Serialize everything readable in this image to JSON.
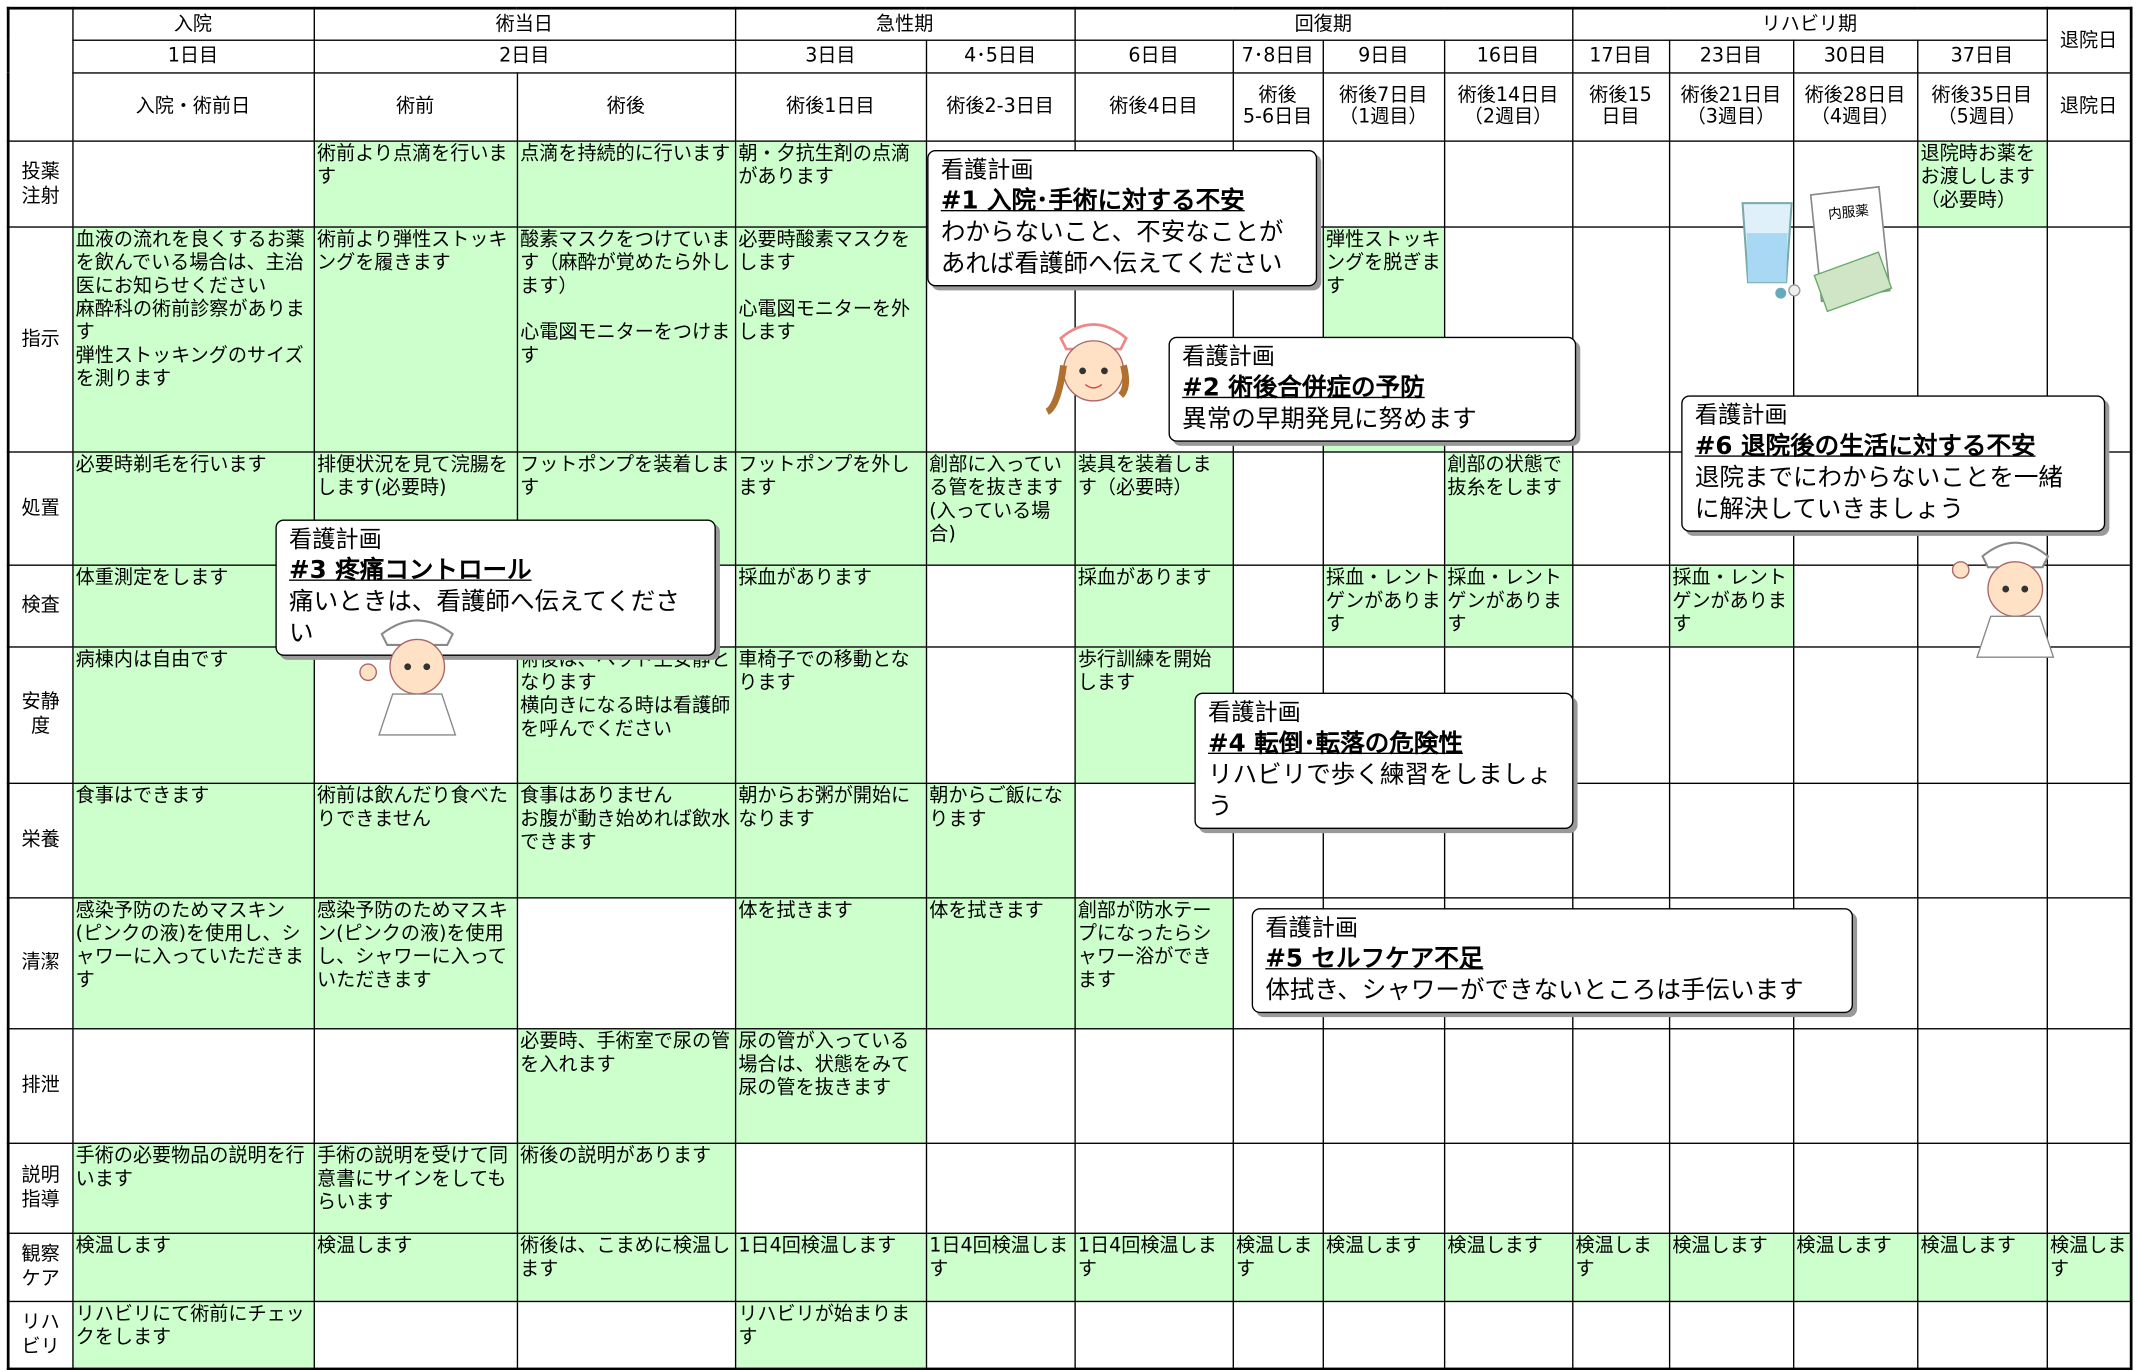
{
  "table": {
    "fill_color": "#ccffcc",
    "phases": [
      "入院",
      "術当日",
      "急性期",
      "回復期",
      "リハビリ期",
      "退院日"
    ],
    "days": [
      "1日目",
      "2日目",
      "3日目",
      "4･5日目",
      "6日目",
      "7･8日目",
      "9日目",
      "16日目",
      "17日目",
      "23日目",
      "30日目",
      "37日目"
    ],
    "columns": [
      "入院・術前日",
      "術前",
      "術後",
      "術後1日目",
      "術後2-3日目",
      "術後4日目",
      "術後\n5-6日目",
      "術後7日目\n（1週目）",
      "術後14日目\n（2週目）",
      "術後15\n日目",
      "術後21日目\n（3週目）",
      "術後28日目\n（4週目）",
      "術後35日目\n（5週目）",
      "退院日"
    ],
    "rows": [
      {
        "label": "投薬\n注射",
        "cells": [
          "",
          "術前より点滴を行います",
          "点滴を持続的に行います",
          "朝・夕抗生剤の点滴があります",
          "",
          "",
          "",
          "",
          "",
          "",
          "",
          "",
          "退院時お薬をお渡しします（必要時）",
          ""
        ]
      },
      {
        "label": "指示",
        "cells": [
          "血液の流れを良くするお薬を飲んでいる場合は、主治医にお知らせください\n麻酔科の術前診察があります\n弾性ストッキングのサイズを測ります",
          "術前より弾性ストッキングを履きます",
          "酸素マスクをつけています（麻酔が覚めたら外します）\n\n心電図モニターをつけます",
          "必要時酸素マスクをします\n\n心電図モニターを外します",
          "",
          "",
          "",
          "弾性ストッキングを脱ぎます",
          "",
          "",
          "",
          "",
          "",
          ""
        ]
      },
      {
        "label": "処置",
        "cells": [
          "必要時剃毛を行います",
          "排便状況を見て浣腸をします(必要時)",
          "フットポンプを装着します",
          "フットポンプを外します",
          "創部に入っている管を抜きます(入っている場合)",
          "装具を装着します（必要時）",
          "",
          "",
          "創部の状態で抜糸をします",
          "",
          "",
          "",
          "",
          ""
        ]
      },
      {
        "label": "検査",
        "cells": [
          "体重測定をします",
          "",
          "",
          "採血があります",
          "",
          "採血があります",
          "",
          "採血・レントゲンがあります",
          "採血・レントゲンがあります",
          "",
          "採血・レントゲンがあります",
          "",
          "",
          ""
        ]
      },
      {
        "label": "安静\n度",
        "cells": [
          "病棟内は自由です",
          "",
          "術後は、ベッド上安静となります\n横向きになる時は看護師を呼んでください",
          "車椅子での移動となります",
          "",
          "歩行訓練を開始します",
          "",
          "",
          "",
          "",
          "",
          "",
          "",
          ""
        ]
      },
      {
        "label": "栄養",
        "cells": [
          "食事はできます",
          "術前は飲んだり食べたりできません",
          "食事はありません\nお腹が動き始めれば飲水できます",
          "朝からお粥が開始になります",
          "朝からご飯になります",
          "",
          "",
          "",
          "",
          "",
          "",
          "",
          "",
          ""
        ]
      },
      {
        "label": "清潔",
        "cells": [
          "感染予防のためマスキン(ピンクの液)を使用し、シャワーに入っていただきます",
          "感染予防のためマスキン(ピンクの液)を使用し、シャワーに入っていただきます",
          "",
          "体を拭きます",
          "体を拭きます",
          "創部が防水テープになったらシャワー浴ができます",
          "",
          "",
          "",
          "",
          "",
          "",
          "",
          ""
        ]
      },
      {
        "label": "排泄",
        "cells": [
          "",
          "",
          "必要時、手術室で尿の管を入れます",
          "尿の管が入っている場合は、状態をみて尿の管を抜きます",
          "",
          "",
          "",
          "",
          "",
          "",
          "",
          "",
          "",
          ""
        ]
      },
      {
        "label": "説明\n指導",
        "cells": [
          "手術の必要物品の説明を行います",
          "手術の説明を受けて同意書にサインをしてもらいます",
          "術後の説明があります",
          "",
          "",
          "",
          "",
          "",
          "",
          "",
          "",
          "",
          "",
          ""
        ]
      },
      {
        "label": "観察\nケア",
        "cells": [
          "検温します",
          "検温します",
          "術後は、こまめに検温します",
          "1日4回検温します",
          "1日4回検温します",
          "1日4回検温します",
          "検温します",
          "検温します",
          "検温します",
          "検温します",
          "検温します",
          "検温します",
          "検温します",
          "検温します"
        ]
      },
      {
        "label": "リハ\nビリ",
        "cells": [
          "リハビリにて術前にチェックをします",
          "",
          "",
          "リハビリが始まります",
          "",
          "",
          "",
          "",
          "",
          "",
          "",
          "",
          "",
          ""
        ]
      }
    ]
  },
  "callouts": [
    {
      "title": "看護計画",
      "heading": "#1  入院･手術に対する不安",
      "text": "わからないこと、不安なことが\nあれば看護師へ伝えてください"
    },
    {
      "title": "看護計画",
      "heading": "#2  術後合併症の予防",
      "text": "異常の早期発見に努めます"
    },
    {
      "title": "看護計画",
      "heading": "#3  疼痛コントロール",
      "text": "痛いときは、看護師へ伝えてください"
    },
    {
      "title": "看護計画",
      "heading": "#4  転倒･転落の危険性",
      "text": "リハビリで歩く練習をしましょう"
    },
    {
      "title": "看護計画",
      "heading": "#5  セルフケア不足",
      "text": "体拭き、シャワーができないところは手伝います"
    },
    {
      "title": "看護計画",
      "heading": "#6  退院後の生活に対する不安",
      "text": "退院までにわからないことを一緒\nに解決していきましょう"
    }
  ],
  "medicine_label": "内服薬"
}
